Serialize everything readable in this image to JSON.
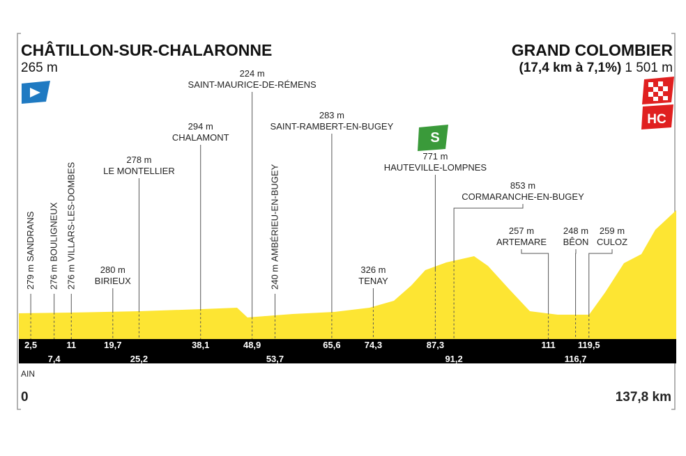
{
  "header": {
    "start": {
      "name": "CHÂTILLON-SUR-CHALARONNE",
      "altitude": "265 m"
    },
    "finish": {
      "name": "GRAND COLOMBIER",
      "climb": "(17,4 km à 7,1%)",
      "altitude": "1 501 m"
    }
  },
  "badges": {
    "sprint": "S",
    "category": "HC"
  },
  "waypoints": [
    {
      "km": "2,5",
      "name": "SANDRANS",
      "altitude": "279 m"
    },
    {
      "km": "7,4",
      "name": "BOULIGNEUX",
      "altitude": "276 m"
    },
    {
      "km": "11",
      "name": "VILLARS-LES-DOMBES",
      "altitude": "276 m"
    },
    {
      "km": "19,7",
      "name": "BIRIEUX",
      "altitude": "280 m"
    },
    {
      "km": "25,2",
      "name": "LE MONTELLIER",
      "altitude": "278 m"
    },
    {
      "km": "38,1",
      "name": "CHALAMONT",
      "altitude": "294 m"
    },
    {
      "km": "48,9",
      "name": "SAINT-MAURICE-DE-RÉMENS",
      "altitude": "224 m"
    },
    {
      "km": "53,7",
      "name": "AMBÉRIEU-EN-BUGEY",
      "altitude": "240 m"
    },
    {
      "km": "65,6",
      "name": "SAINT-RAMBERT-EN-BUGEY",
      "altitude": "283 m"
    },
    {
      "km": "74,3",
      "name": "TENAY",
      "altitude": "326 m"
    },
    {
      "km": "87,3",
      "name": "HAUTEVILLE-LOMPNES",
      "altitude": "771 m"
    },
    {
      "km": "91,2",
      "name": "CORMARANCHE-EN-BUGEY",
      "altitude": "853 m"
    },
    {
      "km": "111",
      "name": "ARTEMARE",
      "altitude": "257 m"
    },
    {
      "km": "116,7",
      "name": "BÊON",
      "altitude": "248 m"
    },
    {
      "km": "119,5",
      "name": "CULOZ",
      "altitude": "259 m"
    }
  ],
  "footer": {
    "region": "AIN",
    "start_km": "0",
    "finish_km": "137,8 km"
  }
}
